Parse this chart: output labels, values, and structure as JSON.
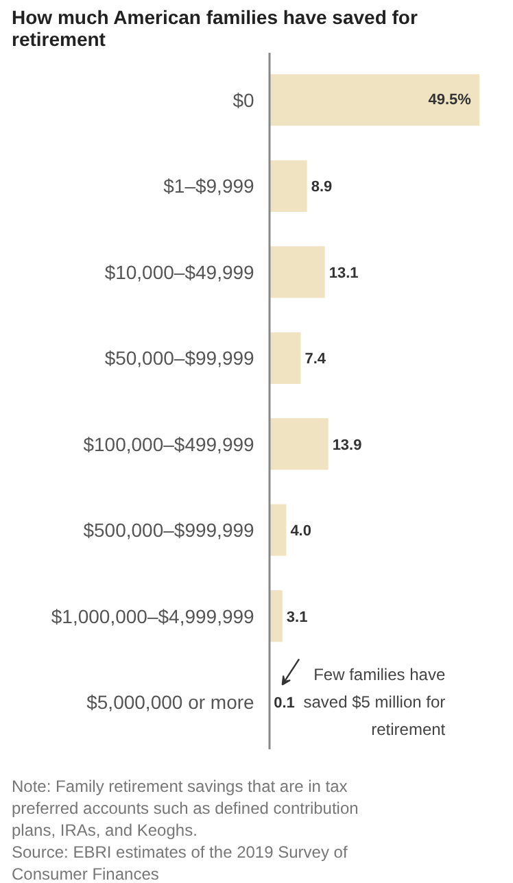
{
  "chart_data": {
    "type": "bar",
    "orientation": "horizontal",
    "title": "How much American families have saved for retirement",
    "categories": [
      "$0",
      "$1–$9,999",
      "$10,000–$49,999",
      "$50,000–$99,999",
      "$100,000–$499,999",
      "$500,000–$999,999",
      "$1,000,000–$4,999,999",
      "$5,000,000 or more"
    ],
    "values": [
      49.5,
      8.9,
      13.1,
      7.4,
      13.9,
      4.0,
      3.1,
      0.1
    ],
    "value_labels": [
      "49.5%",
      "8.9",
      "13.1",
      "7.4",
      "13.9",
      "4.0",
      "3.1",
      "0.1"
    ],
    "color": "#efe3c1",
    "annotations": [
      {
        "text": "Few families have saved $5 million for retirement",
        "x": 0.1,
        "y": "$5,000,000 or more"
      },
      "Note: Family retirement savings that are in tax preferred accounts such as defined contribution plans, IRAs, and Keoghs.",
      "Source: EBRI estimates of the 2019 Survey of Consumer Finances"
    ]
  }
}
